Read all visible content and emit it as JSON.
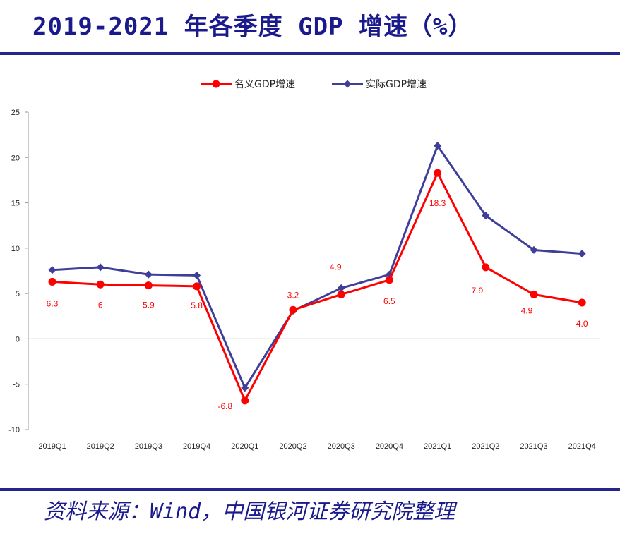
{
  "page": {
    "title": "2019-2021 年各季度 GDP 增速（%）",
    "source": "资料来源：Wind，中国银河证券研究院整理"
  },
  "chart_data": {
    "type": "line",
    "categories": [
      "2019Q1",
      "2019Q2",
      "2019Q3",
      "2019Q4",
      "2020Q1",
      "2020Q2",
      "2020Q3",
      "2020Q4",
      "2021Q1",
      "2021Q2",
      "2021Q3",
      "2021Q4"
    ],
    "series": [
      {
        "name": "名义GDP增速",
        "color": "#ff0000",
        "marker": "circle",
        "values": [
          6.3,
          6.0,
          5.9,
          5.8,
          -6.8,
          3.2,
          4.9,
          6.5,
          18.3,
          7.9,
          4.9,
          4.0
        ],
        "labels": [
          "6.3",
          "6",
          "5.9",
          "5.8",
          "-6.8",
          "3.2",
          "4.9",
          "6.5",
          "18.3",
          "7.9",
          "4.9",
          "4.0"
        ]
      },
      {
        "name": "实际GDP增速",
        "color": "#3f3f9a",
        "marker": "diamond",
        "values": [
          7.6,
          7.9,
          7.1,
          7.0,
          -5.4,
          3.1,
          5.6,
          7.1,
          21.3,
          13.6,
          9.8,
          9.4
        ]
      }
    ],
    "ylim": [
      -10,
      25
    ],
    "yticks": [
      -10,
      -5,
      0,
      5,
      10,
      15,
      20,
      25
    ],
    "legend": "top-center",
    "grid": false
  }
}
